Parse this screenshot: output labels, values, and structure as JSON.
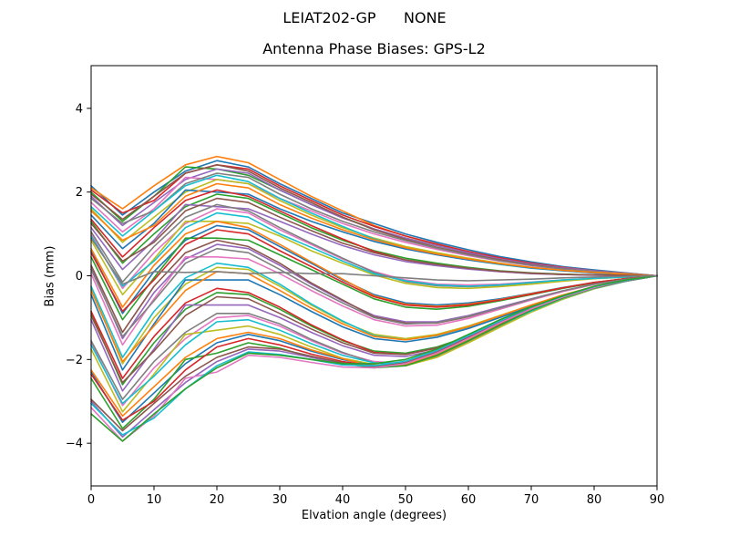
{
  "figure": {
    "suptitle": "LEIAT202-GP      NONE"
  },
  "chart_data": {
    "type": "line",
    "title": "Antenna Phase Biases: GPS-L2",
    "xlabel": "Elvation angle (degrees)",
    "ylabel": "Bias (mm)",
    "xlim": [
      0,
      90
    ],
    "ylim": [
      -5.02,
      5.02
    ],
    "xticks": [
      0,
      10,
      20,
      30,
      40,
      50,
      60,
      70,
      80,
      90
    ],
    "yticks": [
      {
        "v": 4,
        "label": "4"
      },
      {
        "v": 2,
        "label": "2"
      },
      {
        "v": 0,
        "label": "0"
      },
      {
        "v": -2,
        "label": "−2"
      },
      {
        "v": -4,
        "label": "−4"
      }
    ],
    "grid": false,
    "legend": "none",
    "x": [
      0,
      5,
      10,
      15,
      20,
      25,
      30,
      35,
      40,
      45,
      50,
      55,
      60,
      65,
      70,
      75,
      80,
      85,
      90
    ],
    "series": [
      {
        "color": "#1f77b4",
        "values": [
          2.15,
          1.45,
          2.0,
          2.5,
          2.75,
          2.6,
          2.2,
          1.85,
          1.5,
          1.25,
          1.0,
          0.8,
          0.62,
          0.46,
          0.33,
          0.22,
          0.14,
          0.07,
          0
        ]
      },
      {
        "color": "#ff7f0e",
        "values": [
          2.1,
          1.6,
          2.15,
          2.65,
          2.85,
          2.7,
          2.3,
          1.9,
          1.55,
          1.2,
          0.95,
          0.75,
          0.58,
          0.42,
          0.3,
          0.2,
          0.12,
          0.06,
          0
        ]
      },
      {
        "color": "#2ca02c",
        "values": [
          2.0,
          1.3,
          1.9,
          2.6,
          2.55,
          2.4,
          2.05,
          1.7,
          1.4,
          1.12,
          0.9,
          0.72,
          0.55,
          0.4,
          0.28,
          0.18,
          0.11,
          0.05,
          0
        ]
      },
      {
        "color": "#d62728",
        "values": [
          2.05,
          1.5,
          1.8,
          2.45,
          2.65,
          2.55,
          2.15,
          1.8,
          1.45,
          1.18,
          0.95,
          0.76,
          0.58,
          0.43,
          0.3,
          0.2,
          0.12,
          0.06,
          0
        ]
      },
      {
        "color": "#9467bd",
        "values": [
          1.9,
          1.2,
          1.75,
          2.3,
          2.55,
          2.45,
          2.05,
          1.7,
          1.38,
          1.12,
          0.9,
          0.72,
          0.55,
          0.4,
          0.28,
          0.19,
          0.12,
          0.06,
          0
        ]
      },
      {
        "color": "#8c564b",
        "values": [
          1.95,
          1.35,
          1.9,
          2.45,
          2.65,
          2.5,
          2.1,
          1.75,
          1.4,
          1.1,
          0.87,
          0.68,
          0.52,
          0.38,
          0.26,
          0.17,
          0.1,
          0.05,
          0
        ]
      },
      {
        "color": "#e377c2",
        "values": [
          1.75,
          1.05,
          1.6,
          2.35,
          2.3,
          2.2,
          1.85,
          1.55,
          1.25,
          1.0,
          0.8,
          0.63,
          0.48,
          0.35,
          0.24,
          0.16,
          0.1,
          0.04,
          0
        ]
      },
      {
        "color": "#7f7f7f",
        "values": [
          1.85,
          1.25,
          1.55,
          2.2,
          2.45,
          2.35,
          1.95,
          1.6,
          1.3,
          1.05,
          0.84,
          0.66,
          0.5,
          0.36,
          0.25,
          0.16,
          0.1,
          0.05,
          0
        ]
      },
      {
        "color": "#bcbd22",
        "values": [
          1.6,
          0.8,
          1.4,
          2.0,
          2.3,
          2.2,
          1.8,
          1.45,
          1.15,
          0.9,
          0.7,
          0.55,
          0.42,
          0.3,
          0.2,
          0.13,
          0.08,
          0.04,
          0
        ]
      },
      {
        "color": "#17becf",
        "values": [
          1.65,
          0.95,
          1.55,
          2.15,
          2.4,
          2.25,
          1.85,
          1.5,
          1.18,
          0.88,
          0.66,
          0.5,
          0.38,
          0.27,
          0.18,
          0.12,
          0.07,
          0.03,
          0
        ]
      },
      {
        "color": "#1f77b4",
        "values": [
          1.45,
          0.65,
          1.25,
          2.05,
          2.0,
          1.95,
          1.6,
          1.3,
          1.05,
          0.82,
          0.64,
          0.5,
          0.38,
          0.28,
          0.19,
          0.12,
          0.07,
          0.03,
          0
        ]
      },
      {
        "color": "#ff7f0e",
        "values": [
          1.55,
          0.85,
          1.2,
          1.9,
          2.2,
          2.1,
          1.7,
          1.38,
          1.1,
          0.86,
          0.67,
          0.52,
          0.4,
          0.29,
          0.2,
          0.13,
          0.08,
          0.04,
          0
        ]
      },
      {
        "color": "#2ca02c",
        "values": [
          1.3,
          0.3,
          1.0,
          1.65,
          1.95,
          1.85,
          1.5,
          1.15,
          0.85,
          0.6,
          0.42,
          0.3,
          0.2,
          0.12,
          0.07,
          0.04,
          0.02,
          0.01,
          0
        ]
      },
      {
        "color": "#d62728",
        "values": [
          1.35,
          0.45,
          1.15,
          1.8,
          2.05,
          1.9,
          1.55,
          1.2,
          0.88,
          0.58,
          0.38,
          0.26,
          0.17,
          0.1,
          0.06,
          0.03,
          0.02,
          0.01,
          0
        ]
      },
      {
        "color": "#9467bd",
        "values": [
          1.15,
          0.15,
          0.85,
          1.7,
          1.65,
          1.6,
          1.3,
          1.0,
          0.72,
          0.5,
          0.34,
          0.24,
          0.16,
          0.1,
          0.05,
          0.03,
          0.01,
          0.0,
          0
        ]
      },
      {
        "color": "#8c564b",
        "values": [
          1.25,
          0.35,
          0.8,
          1.55,
          1.85,
          1.75,
          1.4,
          1.08,
          0.78,
          0.55,
          0.38,
          0.27,
          0.18,
          0.11,
          0.06,
          0.03,
          0.02,
          0.01,
          0
        ]
      },
      {
        "color": "#e377c2",
        "values": [
          1.0,
          -0.3,
          0.55,
          1.25,
          1.6,
          1.5,
          1.1,
          0.75,
          0.4,
          0.1,
          -0.1,
          -0.2,
          -0.22,
          -0.2,
          -0.15,
          -0.1,
          -0.06,
          -0.03,
          0
        ]
      },
      {
        "color": "#7f7f7f",
        "values": [
          1.05,
          -0.15,
          0.7,
          1.4,
          1.7,
          1.55,
          1.15,
          0.78,
          0.42,
          0.08,
          -0.14,
          -0.24,
          -0.26,
          -0.23,
          -0.17,
          -0.11,
          -0.06,
          -0.03,
          0
        ]
      },
      {
        "color": "#bcbd22",
        "values": [
          0.85,
          -0.45,
          0.4,
          1.3,
          1.3,
          1.25,
          0.95,
          0.6,
          0.3,
          0.02,
          -0.18,
          -0.28,
          -0.3,
          -0.26,
          -0.2,
          -0.13,
          -0.07,
          -0.03,
          0
        ]
      },
      {
        "color": "#17becf",
        "values": [
          0.95,
          -0.25,
          0.35,
          1.15,
          1.5,
          1.4,
          1.0,
          0.68,
          0.35,
          0.05,
          -0.12,
          -0.22,
          -0.25,
          -0.22,
          -0.16,
          -0.1,
          -0.06,
          -0.03,
          0
        ]
      },
      {
        "color": "#1f77b4",
        "values": [
          0.6,
          -0.9,
          0.1,
          0.85,
          1.2,
          1.1,
          0.7,
          0.3,
          -0.1,
          -0.45,
          -0.65,
          -0.7,
          -0.65,
          -0.55,
          -0.42,
          -0.28,
          -0.16,
          -0.07,
          0
        ]
      },
      {
        "color": "#ff7f0e",
        "values": [
          0.65,
          -0.75,
          0.25,
          1.0,
          1.3,
          1.15,
          0.75,
          0.33,
          -0.08,
          -0.48,
          -0.68,
          -0.73,
          -0.68,
          -0.57,
          -0.43,
          -0.29,
          -0.16,
          -0.07,
          0
        ]
      },
      {
        "color": "#2ca02c",
        "values": [
          0.45,
          -1.05,
          -0.05,
          0.9,
          0.9,
          0.85,
          0.5,
          0.15,
          -0.2,
          -0.55,
          -0.75,
          -0.8,
          -0.73,
          -0.6,
          -0.45,
          -0.3,
          -0.17,
          -0.07,
          0
        ]
      },
      {
        "color": "#d62728",
        "values": [
          0.55,
          -0.85,
          -0.1,
          0.75,
          1.1,
          1.0,
          0.6,
          0.22,
          -0.15,
          -0.5,
          -0.7,
          -0.75,
          -0.7,
          -0.58,
          -0.44,
          -0.29,
          -0.16,
          -0.07,
          0
        ]
      },
      {
        "color": "#9467bd",
        "values": [
          0.2,
          -1.5,
          -0.4,
          0.4,
          0.75,
          0.65,
          0.25,
          -0.2,
          -0.6,
          -0.95,
          -1.1,
          -1.1,
          -0.95,
          -0.75,
          -0.55,
          -0.36,
          -0.2,
          -0.09,
          0
        ]
      },
      {
        "color": "#8c564b",
        "values": [
          0.25,
          -1.35,
          -0.25,
          0.55,
          0.85,
          0.7,
          0.3,
          -0.17,
          -0.58,
          -0.98,
          -1.13,
          -1.13,
          -0.98,
          -0.78,
          -0.57,
          -0.37,
          -0.2,
          -0.09,
          0
        ]
      },
      {
        "color": "#e377c2",
        "values": [
          0.05,
          -1.65,
          -0.55,
          0.45,
          0.45,
          0.4,
          0.05,
          -0.35,
          -0.72,
          -1.05,
          -1.2,
          -1.18,
          -1.02,
          -0.8,
          -0.58,
          -0.38,
          -0.21,
          -0.09,
          0
        ]
      },
      {
        "color": "#7f7f7f",
        "values": [
          0.15,
          -1.45,
          -0.6,
          0.3,
          0.65,
          0.55,
          0.15,
          -0.27,
          -0.65,
          -1.0,
          -1.15,
          -1.12,
          -0.97,
          -0.77,
          -0.56,
          -0.36,
          -0.2,
          -0.09,
          0
        ]
      },
      {
        "color": "#bcbd22",
        "values": [
          -0.3,
          -2.1,
          -1.0,
          -0.2,
          0.2,
          0.15,
          -0.25,
          -0.7,
          -1.1,
          -1.4,
          -1.5,
          -1.4,
          -1.2,
          -0.95,
          -0.7,
          -0.46,
          -0.26,
          -0.11,
          0
        ]
      },
      {
        "color": "#17becf",
        "values": [
          -0.25,
          -1.95,
          -0.85,
          -0.05,
          0.3,
          0.2,
          -0.2,
          -0.67,
          -1.08,
          -1.43,
          -1.53,
          -1.43,
          -1.23,
          -0.97,
          -0.71,
          -0.47,
          -0.26,
          -0.11,
          0
        ]
      },
      {
        "color": "#1f77b4",
        "values": [
          -0.45,
          -2.25,
          -1.15,
          -0.1,
          -0.1,
          -0.1,
          -0.45,
          -0.85,
          -1.22,
          -1.5,
          -1.58,
          -1.47,
          -1.26,
          -1.0,
          -0.73,
          -0.48,
          -0.27,
          -0.11,
          0
        ]
      },
      {
        "color": "#ff7f0e",
        "values": [
          -0.35,
          -2.05,
          -1.2,
          -0.35,
          0.1,
          0.05,
          -0.35,
          -0.77,
          -1.15,
          -1.45,
          -1.53,
          -1.42,
          -1.22,
          -0.96,
          -0.7,
          -0.46,
          -0.26,
          -0.11,
          0
        ]
      },
      {
        "color": "#2ca02c",
        "values": [
          -0.9,
          -2.6,
          -1.6,
          -0.8,
          -0.4,
          -0.45,
          -0.8,
          -1.2,
          -1.55,
          -1.8,
          -1.85,
          -1.7,
          -1.45,
          -1.12,
          -0.8,
          -0.52,
          -0.3,
          -0.13,
          0
        ]
      },
      {
        "color": "#d62728",
        "values": [
          -0.85,
          -2.45,
          -1.45,
          -0.65,
          -0.3,
          -0.4,
          -0.75,
          -1.17,
          -1.53,
          -1.83,
          -1.88,
          -1.73,
          -1.48,
          -1.14,
          -0.81,
          -0.53,
          -0.3,
          -0.13,
          0
        ]
      },
      {
        "color": "#9467bd",
        "values": [
          -1.05,
          -2.75,
          -1.75,
          -0.7,
          -0.7,
          -0.7,
          -1.0,
          -1.35,
          -1.67,
          -1.9,
          -1.93,
          -1.77,
          -1.5,
          -1.16,
          -0.83,
          -0.54,
          -0.3,
          -0.13,
          0
        ]
      },
      {
        "color": "#8c564b",
        "values": [
          -0.95,
          -2.55,
          -1.8,
          -0.95,
          -0.5,
          -0.55,
          -0.9,
          -1.27,
          -1.6,
          -1.85,
          -1.88,
          -1.72,
          -1.46,
          -1.13,
          -0.8,
          -0.52,
          -0.3,
          -0.13,
          0
        ]
      },
      {
        "color": "#e377c2",
        "values": [
          -1.6,
          -3.1,
          -2.2,
          -1.5,
          -1.0,
          -0.95,
          -1.2,
          -1.55,
          -1.85,
          -2.05,
          -2.1,
          -1.9,
          -1.55,
          -1.2,
          -0.85,
          -0.55,
          -0.3,
          -0.13,
          0
        ]
      },
      {
        "color": "#7f7f7f",
        "values": [
          -1.55,
          -2.95,
          -2.05,
          -1.35,
          -0.9,
          -0.9,
          -1.15,
          -1.52,
          -1.83,
          -2.08,
          -2.13,
          -1.93,
          -1.58,
          -1.22,
          -0.86,
          -0.56,
          -0.31,
          -0.13,
          0
        ]
      },
      {
        "color": "#bcbd22",
        "values": [
          -1.75,
          -3.25,
          -2.35,
          -1.4,
          -1.3,
          -1.2,
          -1.4,
          -1.7,
          -1.97,
          -2.12,
          -2.15,
          -1.95,
          -1.6,
          -1.23,
          -0.87,
          -0.56,
          -0.31,
          -0.13,
          0
        ]
      },
      {
        "color": "#17becf",
        "values": [
          -1.65,
          -3.05,
          -2.4,
          -1.65,
          -1.1,
          -1.05,
          -1.3,
          -1.62,
          -1.9,
          -2.08,
          -2.1,
          -1.88,
          -1.53,
          -1.18,
          -0.84,
          -0.54,
          -0.3,
          -0.13,
          0
        ]
      },
      {
        "color": "#1f77b4",
        "values": [
          -2.3,
          -3.5,
          -2.8,
          -2.1,
          -1.6,
          -1.4,
          -1.55,
          -1.8,
          -2.0,
          -2.15,
          -2.1,
          -1.85,
          -1.5,
          -1.15,
          -0.8,
          -0.52,
          -0.28,
          -0.12,
          0
        ]
      },
      {
        "color": "#ff7f0e",
        "values": [
          -2.25,
          -3.35,
          -2.65,
          -1.95,
          -1.5,
          -1.35,
          -1.5,
          -1.77,
          -1.98,
          -2.18,
          -2.13,
          -1.88,
          -1.53,
          -1.17,
          -0.81,
          -0.53,
          -0.29,
          -0.12,
          0
        ]
      },
      {
        "color": "#2ca02c",
        "values": [
          -2.45,
          -3.65,
          -2.95,
          -2.0,
          -1.85,
          -1.6,
          -1.73,
          -1.95,
          -2.1,
          -2.2,
          -2.15,
          -1.9,
          -1.55,
          -1.18,
          -0.82,
          -0.53,
          -0.29,
          -0.12,
          0
        ]
      },
      {
        "color": "#d62728",
        "values": [
          -2.35,
          -3.45,
          -3.0,
          -2.25,
          -1.7,
          -1.5,
          -1.65,
          -1.87,
          -2.05,
          -2.15,
          -2.1,
          -1.84,
          -1.49,
          -1.14,
          -0.79,
          -0.51,
          -0.28,
          -0.12,
          0
        ]
      },
      {
        "color": "#9467bd",
        "values": [
          -3.0,
          -3.85,
          -3.2,
          -2.55,
          -2.05,
          -1.75,
          -1.8,
          -1.95,
          -2.1,
          -2.15,
          -2.05,
          -1.8,
          -1.45,
          -1.1,
          -0.77,
          -0.5,
          -0.27,
          -0.11,
          0
        ]
      },
      {
        "color": "#8c564b",
        "values": [
          -2.95,
          -3.7,
          -3.05,
          -2.4,
          -1.95,
          -1.7,
          -1.75,
          -1.92,
          -2.08,
          -2.18,
          -2.08,
          -1.83,
          -1.48,
          -1.12,
          -0.78,
          -0.51,
          -0.27,
          -0.11,
          0
        ]
      },
      {
        "color": "#e377c2",
        "values": [
          -3.15,
          -3.95,
          -3.35,
          -2.45,
          -2.3,
          -1.9,
          -1.95,
          -2.07,
          -2.18,
          -2.2,
          -2.1,
          -1.85,
          -1.5,
          -1.13,
          -0.79,
          -0.51,
          -0.28,
          -0.11,
          0
        ]
      },
      {
        "color": "#17becf",
        "values": [
          -3.05,
          -3.8,
          -3.4,
          -2.7,
          -2.15,
          -1.82,
          -1.88,
          -2.0,
          -2.13,
          -2.15,
          -2.04,
          -1.78,
          -1.43,
          -1.08,
          -0.75,
          -0.49,
          -0.26,
          -0.11,
          0
        ]
      },
      {
        "color": "#2ca02c",
        "values": [
          -3.3,
          -3.95,
          -3.3,
          -2.7,
          -2.2,
          -1.85,
          -1.9,
          -2.0,
          -2.1,
          -2.1,
          -2.0,
          -1.75,
          -1.4,
          -1.05,
          -0.74,
          -0.48,
          -0.25,
          -0.1,
          0
        ]
      },
      {
        "color": "#7f7f7f",
        "values": [
          0.9,
          -0.2,
          0.1,
          0.08,
          0.1,
          0.05,
          0.08,
          0.05,
          0.05,
          0.0,
          -0.05,
          -0.1,
          -0.12,
          -0.1,
          -0.08,
          -0.05,
          -0.03,
          -0.01,
          0
        ]
      }
    ]
  }
}
